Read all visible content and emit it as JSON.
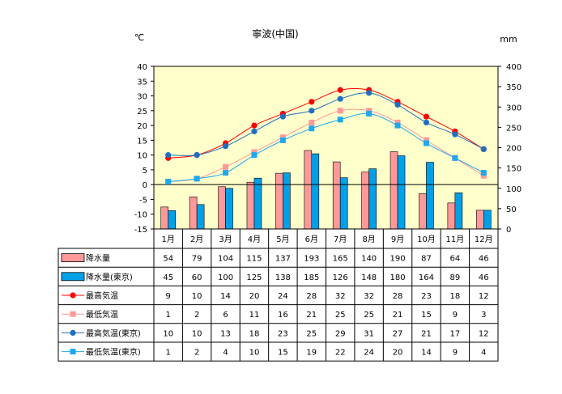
{
  "chart_data": {
    "type": "bar",
    "title": "寧波(中国)",
    "unit_left": "℃",
    "unit_right": "mm",
    "categories": [
      "1月",
      "2月",
      "3月",
      "4月",
      "5月",
      "6月",
      "7月",
      "8月",
      "9月",
      "10月",
      "11月",
      "12月"
    ],
    "y_left": {
      "min": -15,
      "max": 40,
      "ticks": [
        -15,
        -10,
        -5,
        0,
        5,
        10,
        15,
        20,
        25,
        30,
        35,
        40
      ]
    },
    "y_right": {
      "min": 0,
      "max": 400,
      "ticks": [
        0,
        50,
        100,
        150,
        200,
        250,
        300,
        350,
        400
      ]
    },
    "plot_background": "#FFFFCC",
    "series": [
      {
        "name": "降水量",
        "kind": "bar",
        "axis": "right",
        "color": "#FF9999",
        "values": [
          54,
          79,
          104,
          115,
          137,
          193,
          165,
          140,
          190,
          87,
          64,
          46
        ]
      },
      {
        "name": "降水量(東京)",
        "kind": "bar",
        "axis": "right",
        "color": "#00A0E8",
        "values": [
          45,
          60,
          100,
          125,
          138,
          185,
          126,
          148,
          180,
          164,
          89,
          46
        ]
      },
      {
        "name": "最高気温",
        "kind": "line",
        "axis": "left",
        "color": "#FF0000",
        "marker": "circle",
        "values": [
          9,
          10,
          14,
          20,
          24,
          28,
          32,
          32,
          28,
          23,
          18,
          12
        ]
      },
      {
        "name": "最低気温",
        "kind": "line",
        "axis": "left",
        "color": "#FF9999",
        "marker": "square",
        "values": [
          1,
          2,
          6,
          11,
          16,
          21,
          25,
          25,
          21,
          15,
          9,
          3
        ]
      },
      {
        "name": "最高気温(東京)",
        "kind": "line",
        "axis": "left",
        "color": "#1F6FC0",
        "marker": "circle",
        "values": [
          10,
          10,
          13,
          18,
          23,
          25,
          29,
          31,
          27,
          21,
          17,
          12
        ]
      },
      {
        "name": "最低気温(東京)",
        "kind": "line",
        "axis": "left",
        "color": "#1EA8EE",
        "marker": "square",
        "values": [
          1,
          2,
          4,
          10,
          15,
          19,
          22,
          24,
          20,
          14,
          9,
          4
        ]
      }
    ]
  }
}
